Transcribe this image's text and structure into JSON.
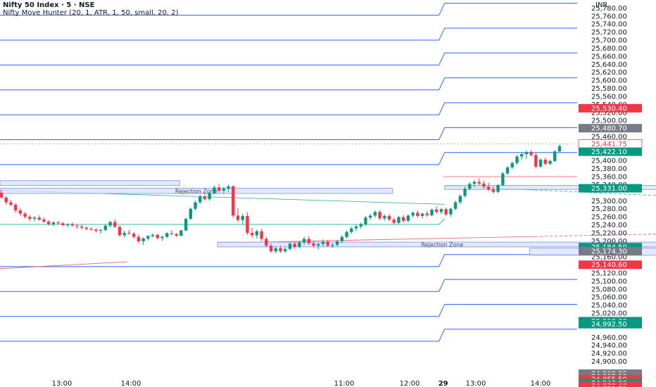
{
  "header": {
    "symbol_line": "Nifty 50 Index · 5 · NSE",
    "indicator_line": "Nifty Move Hunter (20, 1, ATR, 1, 50, small, 20, 2)",
    "currency": "INR"
  },
  "colors": {
    "up": "#089981",
    "down": "#f23645",
    "level_line": "#2962ff",
    "zone_fill": "#dbe4fb",
    "zone_stroke": "#7b94e8",
    "trend_green": "#22ab94",
    "trend_red": "#f7525f",
    "axis_text": "#131722"
  },
  "chart_data": {
    "type": "candlestick",
    "y_axis": {
      "ticks": [
        25780,
        25760,
        25740,
        25720,
        25700,
        25680,
        25660,
        25640,
        25620,
        25600,
        25580,
        25560,
        25540,
        25520,
        25500,
        25460,
        25400,
        25380,
        25360,
        25340,
        25300,
        25280,
        25260,
        25240,
        25220,
        25200,
        25160,
        25120,
        25100,
        25080,
        25060,
        25040,
        25020,
        24960,
        24940,
        24920,
        24900
      ],
      "ylim": [
        24836,
        25800
      ]
    },
    "x_axis": {
      "tick_labels": [
        "13:00",
        "14:00",
        "29",
        "11:00",
        "12:00",
        "13:00",
        "14:00"
      ]
    },
    "price_tags": [
      {
        "value": 25530.4,
        "label": "25,530.40",
        "style": "red"
      },
      {
        "value": 25480.7,
        "label": "25,480.70",
        "style": "gray"
      },
      {
        "value": 25441.75,
        "label": "25,441.75",
        "style": "red-outline"
      },
      {
        "value": 25422.1,
        "label": "25,422.10",
        "style": "green"
      },
      {
        "value": 25331.0,
        "label": "25,331.00",
        "style": "green"
      },
      {
        "value": 25184.5,
        "label": "25,184.50",
        "style": "green"
      },
      {
        "value": 25174.3,
        "label": "25,174.30",
        "style": "gray"
      },
      {
        "value": 25140.6,
        "label": "25,140.60",
        "style": "red"
      },
      {
        "value": 25000.0,
        "label": "25,000.00",
        "style": "green"
      },
      {
        "value": 24992.5,
        "label": "24,992.50",
        "style": "green"
      },
      {
        "value": 24869.25,
        "label": "24,869.25",
        "style": "gray"
      },
      {
        "value": 24862.0,
        "label": "24,862.00",
        "style": "gray"
      },
      {
        "value": 24855.5,
        "label": "24,855.50",
        "style": "red"
      },
      {
        "value": 24846.0,
        "label": "24,846.00",
        "style": "green"
      },
      {
        "value": 24838.4,
        "label": "24,838.40",
        "style": "red"
      },
      {
        "value": 24831.5,
        "label": "24,831.50",
        "style": "red"
      }
    ],
    "zones": [
      {
        "label": "",
        "y_top": 25350,
        "y_bottom": 25338,
        "x_start": -20,
        "x_end": 38
      },
      {
        "label": "Rejection Zone",
        "y_top": 25331,
        "y_bottom": 25318,
        "x_start": -20,
        "x_end": 83
      },
      {
        "label": "Rejection Zone",
        "y_top": 25338,
        "y_bottom": 25328,
        "x_start": 94,
        "x_end": 210
      },
      {
        "label": "Rejection Zone",
        "y_top": 25197,
        "y_bottom": 25185,
        "x_start": 46,
        "x_end": 141
      },
      {
        "label": "Rejection Zone",
        "y_top": 25182,
        "y_bottom": 25164,
        "x_start": 112,
        "x_end": 232
      }
    ],
    "level_lines_left": [
      25762,
      25700,
      25638,
      25576,
      25514,
      25452,
      25390,
      25136,
      25074,
      25012,
      24950
    ],
    "level_lines_right": [
      25792,
      25730,
      25668,
      25606,
      25544,
      25482,
      25420,
      25166,
      25104,
      25042,
      24980
    ],
    "dotted_level": 25441.75,
    "red_level_right": 25360,
    "green_level": 25241,
    "day_break_index": 94,
    "trendlines": [
      {
        "color": "green",
        "from": [
          0,
          25326
        ],
        "to": [
          94,
          25291
        ]
      },
      {
        "color": "green",
        "from": [
          94,
          25337
        ],
        "to": [
          245,
          25256
        ]
      },
      {
        "color": "red",
        "from": [
          -20,
          25118
        ],
        "to": [
          27,
          25148
        ]
      },
      {
        "color": "red",
        "from": [
          46,
          25195
        ],
        "to": [
          245,
          25242
        ]
      }
    ],
    "candles": [
      [
        25320,
        25327,
        25306,
        25308
      ],
      [
        25308,
        25312,
        25290,
        25296
      ],
      [
        25296,
        25302,
        25286,
        25290
      ],
      [
        25290,
        25294,
        25270,
        25276
      ],
      [
        25276,
        25282,
        25262,
        25268
      ],
      [
        25268,
        25272,
        25255,
        25260
      ],
      [
        25260,
        25264,
        25250,
        25255
      ],
      [
        25255,
        25262,
        25249,
        25258
      ],
      [
        25258,
        25264,
        25250,
        25253
      ],
      [
        25253,
        25258,
        25245,
        25248
      ],
      [
        25248,
        25252,
        25238,
        25242
      ],
      [
        25242,
        25249,
        25236,
        25246
      ],
      [
        25246,
        25250,
        25240,
        25244
      ],
      [
        25244,
        25247,
        25237,
        25239
      ],
      [
        25239,
        25244,
        25234,
        25241
      ],
      [
        25241,
        25246,
        25236,
        25238
      ],
      [
        25238,
        25241,
        25230,
        25236
      ],
      [
        25236,
        25240,
        25229,
        25233
      ],
      [
        25233,
        25236,
        25226,
        25230
      ],
      [
        25230,
        25234,
        25225,
        25228
      ],
      [
        25228,
        25232,
        25221,
        25225
      ],
      [
        25225,
        25230,
        25218,
        25227
      ],
      [
        25227,
        25240,
        25224,
        25238
      ],
      [
        25238,
        25250,
        25234,
        25247
      ],
      [
        25247,
        25254,
        25232,
        25235
      ],
      [
        25235,
        25238,
        25210,
        25214
      ],
      [
        25214,
        25225,
        25208,
        25220
      ],
      [
        25220,
        25228,
        25215,
        25218
      ],
      [
        25218,
        25222,
        25206,
        25210
      ],
      [
        25210,
        25216,
        25195,
        25199
      ],
      [
        25199,
        25209,
        25190,
        25206
      ],
      [
        25206,
        25215,
        25201,
        25212
      ],
      [
        25212,
        25219,
        25208,
        25215
      ],
      [
        25215,
        25218,
        25203,
        25207
      ],
      [
        25207,
        25213,
        25200,
        25210
      ],
      [
        25210,
        25222,
        25207,
        25219
      ],
      [
        25219,
        25226,
        25214,
        25217
      ],
      [
        25217,
        25220,
        25209,
        25213
      ],
      [
        25213,
        25228,
        25211,
        25226
      ],
      [
        25226,
        25258,
        25224,
        25255
      ],
      [
        25255,
        25283,
        25252,
        25280
      ],
      [
        25280,
        25300,
        25276,
        25296
      ],
      [
        25296,
        25315,
        25292,
        25310
      ],
      [
        25310,
        25316,
        25301,
        25304
      ],
      [
        25304,
        25322,
        25300,
        25319
      ],
      [
        25319,
        25338,
        25316,
        25333
      ],
      [
        25333,
        25342,
        25320,
        25325
      ],
      [
        25325,
        25335,
        25318,
        25330
      ],
      [
        25330,
        25340,
        25322,
        25336
      ],
      [
        25336,
        25338,
        25258,
        25263
      ],
      [
        25263,
        25282,
        25247,
        25252
      ],
      [
        25252,
        25268,
        25242,
        25262
      ],
      [
        25262,
        25271,
        25215,
        25220
      ],
      [
        25220,
        25232,
        25208,
        25214
      ],
      [
        25214,
        25228,
        25206,
        25224
      ],
      [
        25224,
        25230,
        25200,
        25205
      ],
      [
        25205,
        25210,
        25184,
        25188
      ],
      [
        25188,
        25194,
        25170,
        25174
      ],
      [
        25174,
        25186,
        25169,
        25182
      ],
      [
        25182,
        25188,
        25170,
        25174
      ],
      [
        25174,
        25184,
        25170,
        25180
      ],
      [
        25180,
        25196,
        25176,
        25193
      ],
      [
        25193,
        25198,
        25180,
        25185
      ],
      [
        25185,
        25200,
        25182,
        25196
      ],
      [
        25196,
        25210,
        25190,
        25205
      ],
      [
        25205,
        25212,
        25190,
        25194
      ],
      [
        25194,
        25200,
        25183,
        25188
      ],
      [
        25188,
        25196,
        25178,
        25192
      ],
      [
        25192,
        25204,
        25185,
        25198
      ],
      [
        25198,
        25202,
        25184,
        25188
      ],
      [
        25188,
        25195,
        25182,
        25190
      ],
      [
        25190,
        25202,
        25186,
        25199
      ],
      [
        25199,
        25214,
        25194,
        25210
      ],
      [
        25210,
        25226,
        25206,
        25222
      ],
      [
        25222,
        25235,
        25218,
        25231
      ],
      [
        25231,
        25240,
        25225,
        25236
      ],
      [
        25236,
        25246,
        25230,
        25242
      ],
      [
        25242,
        25262,
        25238,
        25258
      ],
      [
        25258,
        25268,
        25252,
        25263
      ],
      [
        25263,
        25276,
        25258,
        25272
      ],
      [
        25272,
        25276,
        25252,
        25256
      ],
      [
        25256,
        25266,
        25250,
        25262
      ],
      [
        25262,
        25268,
        25249,
        25253
      ],
      [
        25253,
        25258,
        25241,
        25245
      ],
      [
        25245,
        25262,
        25241,
        25259
      ],
      [
        25259,
        25264,
        25246,
        25250
      ],
      [
        25250,
        25266,
        25246,
        25263
      ],
      [
        25263,
        25274,
        25258,
        25270
      ],
      [
        25270,
        25276,
        25258,
        25262
      ],
      [
        25262,
        25270,
        25256,
        25268
      ],
      [
        25268,
        25275,
        25260,
        25264
      ],
      [
        25264,
        25280,
        25262,
        25278
      ],
      [
        25278,
        25286,
        25268,
        25272
      ],
      [
        25272,
        25282,
        25266,
        25279
      ],
      [
        25279,
        25283,
        25262,
        25266
      ],
      [
        25266,
        25282,
        25260,
        25280
      ],
      [
        25280,
        25300,
        25276,
        25296
      ],
      [
        25296,
        25316,
        25292,
        25312
      ],
      [
        25312,
        25334,
        25308,
        25330
      ],
      [
        25330,
        25346,
        25326,
        25342
      ],
      [
        25342,
        25352,
        25334,
        25347
      ],
      [
        25347,
        25356,
        25338,
        25343
      ],
      [
        25343,
        25350,
        25330,
        25335
      ],
      [
        25335,
        25345,
        25324,
        25328
      ],
      [
        25328,
        25336,
        25318,
        25322
      ],
      [
        25322,
        25342,
        25319,
        25339
      ],
      [
        25339,
        25372,
        25336,
        25368
      ],
      [
        25368,
        25386,
        25364,
        25383
      ],
      [
        25383,
        25398,
        25379,
        25394
      ],
      [
        25394,
        25414,
        25390,
        25410
      ],
      [
        25410,
        25420,
        25402,
        25416
      ],
      [
        25416,
        25426,
        25404,
        25421
      ],
      [
        25421,
        25427,
        25409,
        25414
      ],
      [
        25414,
        25419,
        25380,
        25385
      ],
      [
        25385,
        25406,
        25382,
        25402
      ],
      [
        25402,
        25408,
        25388,
        25392
      ],
      [
        25392,
        25402,
        25389,
        25399
      ],
      [
        25399,
        25426,
        25396,
        25423
      ],
      [
        25423,
        25440,
        25420,
        25436
      ]
    ]
  }
}
